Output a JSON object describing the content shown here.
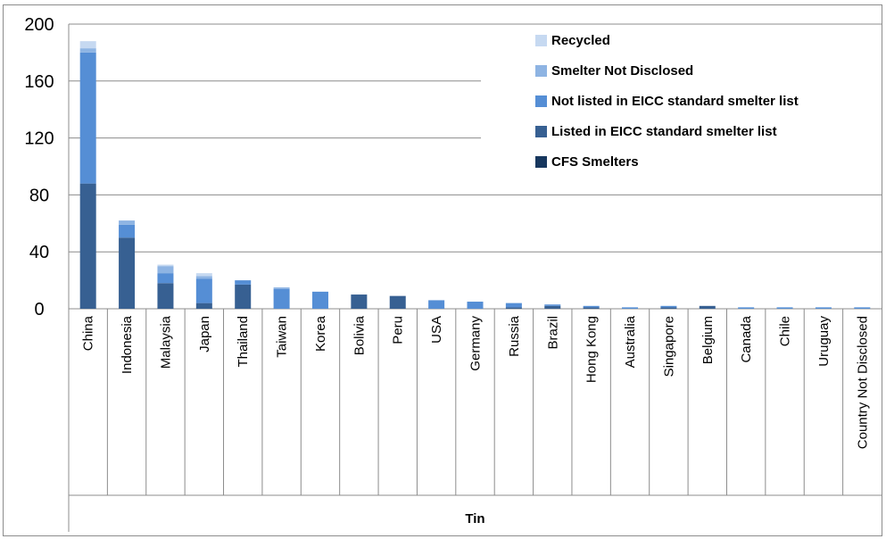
{
  "chart_data": {
    "type": "bar",
    "stacked": true,
    "xlabel": "Tin",
    "ylabel": "",
    "ylim": [
      0,
      200
    ],
    "yticks": [
      0,
      40,
      80,
      120,
      160,
      200
    ],
    "grid": true,
    "legend_position": "top-right",
    "categories": [
      "China",
      "Indonesia",
      "Malaysia",
      "Japan",
      "Thailand",
      "Taiwan",
      "Korea",
      "Bolivia",
      "Peru",
      "USA",
      "Germany",
      "Russia",
      "Brazil",
      "Hong Kong",
      "Australia",
      "Singapore",
      "Belgium",
      "Canada",
      "Chile",
      "Uruguay",
      "Country Not Disclosed"
    ],
    "series": [
      {
        "name": "CFS Smelters",
        "color": "#17375e",
        "values": [
          0,
          0,
          0,
          0,
          0,
          0,
          0,
          0,
          0,
          0,
          0,
          0,
          0,
          0,
          0,
          0,
          0,
          0,
          0,
          0,
          0
        ]
      },
      {
        "name": "Listed in EICC standard smelter list",
        "color": "#376092",
        "values": [
          88,
          50,
          18,
          4,
          17,
          0,
          0,
          10,
          9,
          0,
          0,
          1,
          2,
          1,
          0,
          1,
          2,
          0,
          0,
          0,
          0
        ]
      },
      {
        "name": "Not listed in EICC standard smelter list",
        "color": "#558ed5",
        "values": [
          92,
          9,
          7,
          17,
          3,
          14,
          12,
          0,
          0,
          6,
          5,
          3,
          1,
          1,
          1,
          1,
          0,
          1,
          1,
          1,
          1
        ]
      },
      {
        "name": "Smelter Not Disclosed",
        "color": "#8eb4e3",
        "values": [
          3,
          3,
          5,
          2,
          0,
          1,
          0,
          0,
          0,
          0,
          0,
          0,
          0,
          0,
          0,
          0,
          0,
          0,
          0,
          0,
          0
        ]
      },
      {
        "name": "Recycled",
        "color": "#c6d9f1",
        "values": [
          5,
          0,
          1,
          2,
          0,
          0,
          0,
          0,
          0,
          0,
          0,
          0,
          0,
          0,
          0,
          0,
          0,
          0,
          0,
          0,
          0
        ]
      }
    ]
  }
}
